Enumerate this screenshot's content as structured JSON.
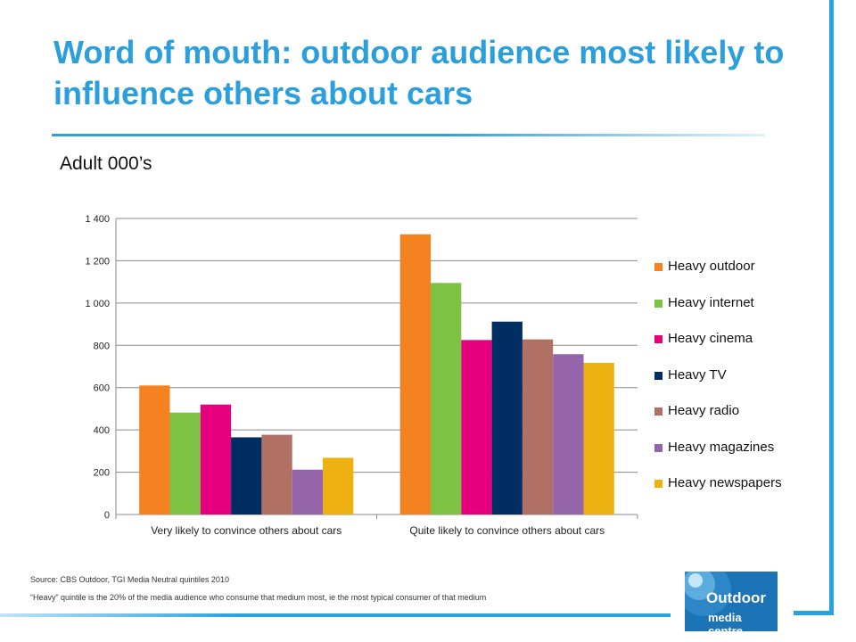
{
  "slide": {
    "title": "Word of mouth: outdoor audience most likely to influence others about cars",
    "subtitle": "Adult 000’s",
    "source_line": "Source: CBS Outdoor, TGI Media Neutral quintiles 2010",
    "note_line": "“Heavy” quintile is the 20% of the media audience who consume that medium most, ie the most typical consumer of that medium",
    "logo": {
      "line1": "Outdoor",
      "line2": "media centre"
    },
    "colors": {
      "accent": "#29a3e0",
      "title": "#2a9fdc",
      "logo_bg": "#1c73b5"
    }
  },
  "chart_data": {
    "type": "bar",
    "title": "",
    "xlabel": "",
    "ylabel": "",
    "ylim": [
      0,
      1400
    ],
    "yticks": [
      0,
      200,
      400,
      600,
      800,
      1000,
      1200,
      1400
    ],
    "ytick_labels": [
      "0",
      "200",
      "400",
      "600",
      "800",
      "1 000",
      "1 200",
      "1 400"
    ],
    "grid": true,
    "legend_position": "right",
    "categories": [
      "Very likely to convince others about cars",
      "Quite likely to convince others about cars"
    ],
    "series": [
      {
        "name": "Heavy outdoor",
        "color": "#f58220",
        "values": [
          610,
          1325
        ]
      },
      {
        "name": "Heavy internet",
        "color": "#7dc242",
        "values": [
          482,
          1095
        ]
      },
      {
        "name": "Heavy cinema",
        "color": "#e6007e",
        "values": [
          520,
          825
        ]
      },
      {
        "name": "Heavy TV",
        "color": "#002d62",
        "values": [
          365,
          912
        ]
      },
      {
        "name": "Heavy radio",
        "color": "#b07064",
        "values": [
          377,
          828
        ]
      },
      {
        "name": "Heavy magazines",
        "color": "#9565ab",
        "values": [
          212,
          758
        ]
      },
      {
        "name": "Heavy newspapers",
        "color": "#edb111",
        "values": [
          268,
          717
        ]
      }
    ]
  }
}
